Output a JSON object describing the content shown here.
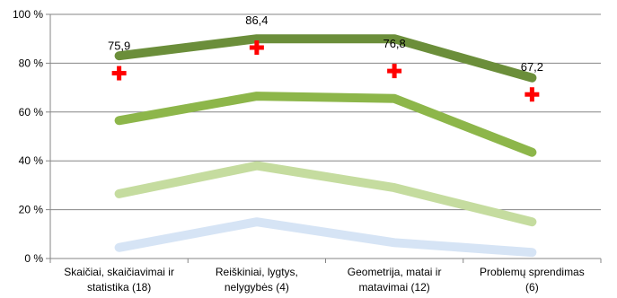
{
  "chart_data": {
    "type": "line",
    "categories": [
      [
        "Skaičiai, skaičiavimai ir",
        "statistika (18)"
      ],
      [
        "Reiškiniai, lygtys,",
        "nelygybės (4)"
      ],
      [
        "Geometrija, matai ir",
        "matavimai (12)"
      ],
      [
        "Problemų sprendimas",
        "(6)"
      ]
    ],
    "y_ticks": [
      "0 %",
      "20 %",
      "40 %",
      "60 %",
      "80 %",
      "100 %"
    ],
    "ylim": [
      0,
      100
    ],
    "grid": true,
    "legend": "none",
    "series": [
      {
        "values": [
          83,
          90,
          90,
          74
        ],
        "color": "#6b8e3a"
      },
      {
        "values": [
          56.5,
          66.5,
          65.5,
          43.5
        ],
        "color": "#8db64a"
      },
      {
        "values": [
          26.5,
          38,
          29,
          15
        ],
        "color": "#c5dc9f"
      },
      {
        "values": [
          4.5,
          15,
          6.5,
          2.5
        ],
        "color": "#d6e4f5"
      }
    ],
    "markers": {
      "symbol": "cross",
      "color": "#ff0000",
      "values": [
        75.9,
        86.4,
        76.8,
        67.2
      ],
      "labels": [
        "75,9",
        "86,4",
        "76,8",
        "67,2"
      ]
    }
  }
}
